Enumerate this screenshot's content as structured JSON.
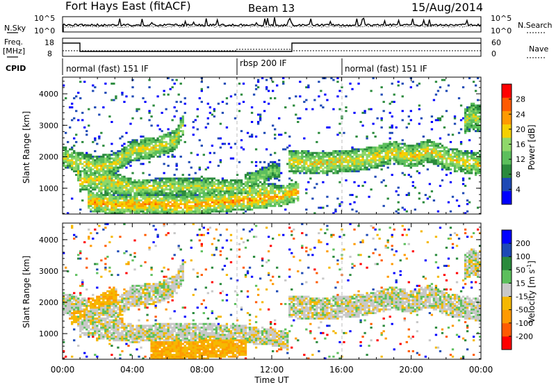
{
  "header": {
    "station": "Fort Hays East (fitACF)",
    "beam": "Beam 13",
    "date": "15/Aug/2014"
  },
  "summary": {
    "nsky_label": "N.Sky",
    "nsky_ticks": [
      "10^5",
      "10^0"
    ],
    "nsearch_label": "N.Search",
    "nsearch_ticks": [
      "10^5",
      "10^0"
    ],
    "freq_label": "Freq.",
    "freq_unit": "[MHz]",
    "freq_ticks": [
      "18",
      "8"
    ],
    "nave_label": "Nave",
    "nave_ticks": [
      "60",
      "0"
    ],
    "cpid_label": "CPID",
    "modes": [
      {
        "label": "normal (fast) 151 IF",
        "start_h": 0,
        "end_h": 10
      },
      {
        "label": "rbsp 200 IF",
        "start_h": 10,
        "end_h": 16
      },
      {
        "label": "normal (fast) 151 IF",
        "start_h": 16,
        "end_h": 24
      }
    ]
  },
  "chart_data": [
    {
      "type": "heatmap",
      "name": "power",
      "title": "",
      "xlabel": "Time UT",
      "ylabel": "Slant Range [km]",
      "x_ticks": [
        "00:00",
        "04:00",
        "08:00",
        "12:00",
        "16:00",
        "20:00",
        "00:00"
      ],
      "xlim_hours": [
        0,
        24
      ],
      "y_ticks": [
        "1000",
        "2000",
        "3000",
        "4000"
      ],
      "ylim": [
        180,
        4530
      ],
      "colorbar": {
        "label": "Power [dB]",
        "ticks": [
          "28",
          "24",
          "20",
          "16",
          "12",
          "8",
          "4"
        ],
        "range": [
          0,
          32
        ],
        "colors": [
          "#0000ff",
          "#1d49b5",
          "#2a8a3c",
          "#5cbf5c",
          "#8fd86a",
          "#f5d000",
          "#ff9a00",
          "#ff5a00",
          "#ff0000"
        ]
      },
      "bands": [
        {
          "pts": [
            [
              0.0,
              2000
            ],
            [
              1.0,
              1820
            ],
            [
              2.0,
              1680
            ],
            [
              3.0,
              1780
            ],
            [
              4.0,
              2200
            ],
            [
              5.5,
              2300
            ],
            [
              6.5,
              2550
            ],
            [
              7.0,
              3100
            ]
          ],
          "width": 340,
          "level": 0.58
        },
        {
          "pts": [
            [
              0.0,
              2000
            ],
            [
              0.8,
              1800
            ],
            [
              1.0,
              1200
            ],
            [
              2.5,
              1300
            ],
            [
              4.0,
              1000
            ]
          ],
          "width": 300,
          "level": 0.62
        },
        {
          "pts": [
            [
              2.0,
              1100
            ],
            [
              4.0,
              1000
            ],
            [
              6.0,
              1050
            ],
            [
              8.0,
              1050
            ],
            [
              10.0,
              1000
            ],
            [
              12.0,
              900
            ],
            [
              13.0,
              750
            ]
          ],
          "width": 280,
          "level": 0.55
        },
        {
          "pts": [
            [
              1.5,
              600
            ],
            [
              3.0,
              480
            ],
            [
              5.0,
              520
            ],
            [
              7.0,
              450
            ],
            [
              9.0,
              550
            ],
            [
              11.0,
              650
            ],
            [
              12.5,
              750
            ],
            [
              13.5,
              900
            ]
          ],
          "width": 320,
          "level": 0.72
        },
        {
          "pts": [
            [
              13.0,
              1850
            ],
            [
              15.0,
              1800
            ],
            [
              17.0,
              1900
            ],
            [
              18.0,
              2000
            ],
            [
              19.0,
              2150
            ],
            [
              20.0,
              2000
            ],
            [
              21.0,
              2200
            ],
            [
              22.0,
              1950
            ],
            [
              23.0,
              1850
            ],
            [
              24.0,
              1750
            ]
          ],
          "width": 360,
          "level": 0.62
        },
        {
          "pts": [
            [
              23.0,
              3100
            ],
            [
              23.5,
              3300
            ],
            [
              24.0,
              3200
            ]
          ],
          "width": 420,
          "level": 0.56
        },
        {
          "pts": [
            [
              10.5,
              1200
            ],
            [
              11.5,
              1400
            ],
            [
              12.0,
              1600
            ],
            [
              12.5,
              1500
            ]
          ],
          "width": 280,
          "level": 0.45
        }
      ]
    },
    {
      "type": "heatmap",
      "name": "velocity",
      "title": "",
      "xlabel": "Time UT",
      "ylabel": "Slant Range [km]",
      "x_ticks": [
        "00:00",
        "04:00",
        "08:00",
        "12:00",
        "16:00",
        "20:00",
        "00:00"
      ],
      "xlim_hours": [
        0,
        24
      ],
      "y_ticks": [
        "1000",
        "2000",
        "3000",
        "4000"
      ],
      "ylim": [
        180,
        4530
      ],
      "colorbar": {
        "label": "Velocity [m s^-1]",
        "ticks": [
          "200",
          "100",
          "50",
          "15",
          "-15",
          "-50",
          "-100",
          "-200"
        ],
        "range": [
          -250,
          250
        ],
        "colors": [
          "#ff0000",
          "#ff5a00",
          "#ff9a00",
          "#f5b800",
          "#c8c8c8",
          "#5cbf5c",
          "#2a8a3c",
          "#1d49b5",
          "#0000ff"
        ]
      },
      "bands": [
        {
          "pts": [
            [
              0.0,
              2000
            ],
            [
              1.0,
              1820
            ],
            [
              2.0,
              1680
            ],
            [
              3.0,
              1780
            ],
            [
              4.0,
              2200
            ],
            [
              5.5,
              2300
            ],
            [
              6.5,
              2550
            ],
            [
              7.0,
              3100
            ]
          ],
          "width": 340,
          "level": 0.5
        },
        {
          "pts": [
            [
              0.0,
              2000
            ],
            [
              0.8,
              1800
            ],
            [
              1.0,
              1200
            ],
            [
              2.5,
              1300
            ],
            [
              4.0,
              1000
            ]
          ],
          "width": 300,
          "level": 0.5
        },
        {
          "pts": [
            [
              2.0,
              1100
            ],
            [
              4.0,
              1000
            ],
            [
              6.0,
              1050
            ],
            [
              8.0,
              1050
            ],
            [
              10.0,
              1000
            ],
            [
              12.0,
              900
            ],
            [
              13.0,
              750
            ]
          ],
          "width": 280,
          "level": 0.5
        },
        {
          "pts": [
            [
              5.0,
              500
            ],
            [
              7.0,
              450
            ],
            [
              9.0,
              550
            ],
            [
              10.5,
              600
            ]
          ],
          "width": 320,
          "level": 0.34
        },
        {
          "pts": [
            [
              13.0,
              1850
            ],
            [
              15.0,
              1800
            ],
            [
              17.0,
              1900
            ],
            [
              18.0,
              2000
            ],
            [
              19.0,
              2150
            ],
            [
              20.0,
              2000
            ],
            [
              21.0,
              2200
            ],
            [
              22.0,
              1950
            ],
            [
              23.0,
              1850
            ],
            [
              24.0,
              1750
            ]
          ],
          "width": 360,
          "level": 0.5
        },
        {
          "pts": [
            [
              23.0,
              3100
            ],
            [
              23.5,
              3300
            ],
            [
              24.0,
              3200
            ]
          ],
          "width": 420,
          "level": 0.5
        },
        {
          "pts": [
            [
              0.5,
              1600
            ],
            [
              2.0,
              1900
            ],
            [
              3.0,
              2200
            ],
            [
              3.5,
              1500
            ]
          ],
          "width": 300,
          "level": 0.36
        }
      ]
    }
  ]
}
